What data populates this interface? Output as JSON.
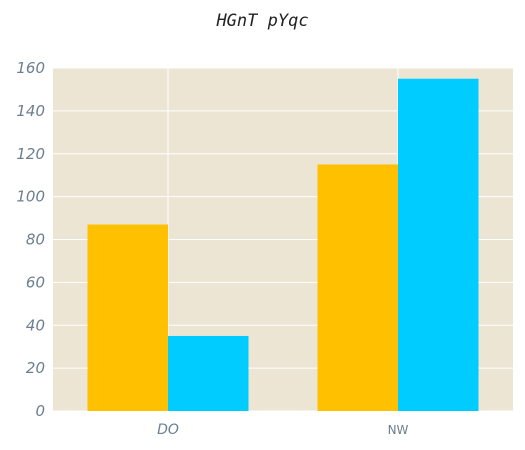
{
  "chart_data": {
    "type": "bar",
    "title": "HGnT pYqc",
    "categories": [
      "DO",
      "NW"
    ],
    "series": [
      {
        "values": [
          87,
          115
        ],
        "color": "#ffc000"
      },
      {
        "values": [
          35,
          155
        ],
        "color": "#00ccff"
      }
    ],
    "ylim": [
      0,
      160
    ],
    "yticks": [
      0,
      20,
      40,
      60,
      80,
      100,
      120,
      140,
      160
    ],
    "xlabel": "",
    "ylabel": "",
    "grid": true,
    "legend": "none",
    "plot_background": "#ede5d3",
    "grid_color": "#ffffff"
  }
}
